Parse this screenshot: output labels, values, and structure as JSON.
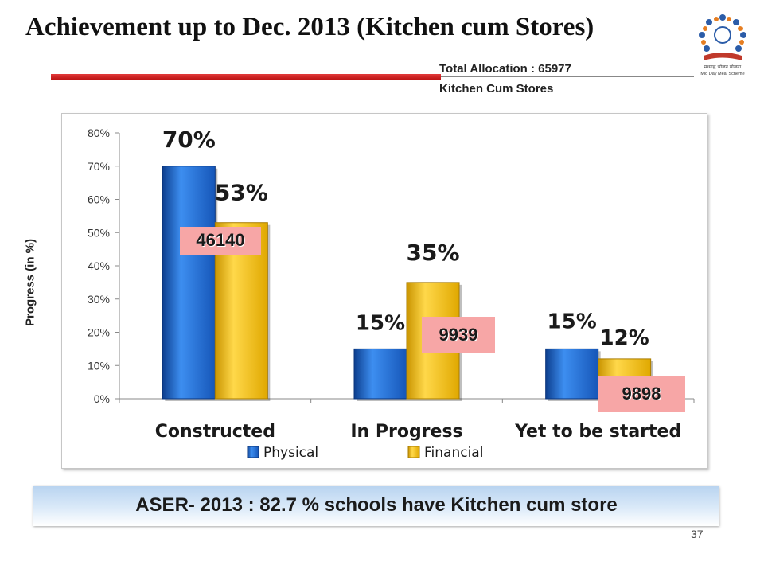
{
  "title": "Achievement  up to Dec. 2013  (Kitchen cum Stores)",
  "allocation": {
    "line1": "Total Allocation : 65977",
    "line2": "Kitchen Cum Stores"
  },
  "logo_text": "Mid Day Meal Scheme",
  "y_axis_title": "Progress (in %)",
  "chart_data": {
    "type": "bar",
    "categories": [
      "Constructed",
      "In Progress",
      "Yet to be started"
    ],
    "series": [
      {
        "name": "Physical",
        "values": [
          70,
          15,
          15
        ],
        "labels": [
          "70%",
          "15%",
          "15%"
        ],
        "color": "#1f6fd0"
      },
      {
        "name": "Financial",
        "values": [
          53,
          35,
          12
        ],
        "labels": [
          "53%",
          "35%",
          "12%"
        ],
        "color": "#ffc700"
      }
    ],
    "ylim": [
      0,
      80
    ],
    "yticks": [
      "0%",
      "10%",
      "20%",
      "30%",
      "40%",
      "50%",
      "60%",
      "70%",
      "80%"
    ],
    "legend": "bottom",
    "counts": [
      "46140",
      "9939",
      "9898"
    ]
  },
  "banner": "ASER- 2013 : 82.7 % schools have Kitchen cum store",
  "page_number": "37"
}
